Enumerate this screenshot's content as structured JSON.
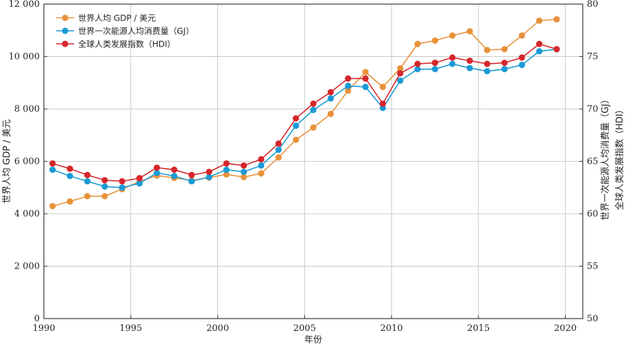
{
  "chart_data": {
    "type": "line",
    "title": "",
    "xlabel": "年份",
    "ylabel_left": "世界人均 GDP / 美元",
    "ylabel_right": [
      "世界一次能源人均消费量（GJ）",
      "全球人类发展指数（HDI）"
    ],
    "xlim": [
      1990,
      2021
    ],
    "xticks": [
      "1990",
      "1995",
      "2000",
      "2005",
      "2010",
      "2015",
      "2020"
    ],
    "ylim_left": [
      0,
      12000
    ],
    "yticks_left": [
      "0",
      "2 000",
      "4 000",
      "6 000",
      "8 000",
      "10 000",
      "12 000"
    ],
    "ylim_right": [
      50,
      80
    ],
    "yticks_right": [
      "50",
      "55",
      "60",
      "65",
      "70",
      "75",
      "80"
    ],
    "grid": true,
    "legend_position": "top-left",
    "x": [
      1990.5,
      1991.5,
      1992.5,
      1993.5,
      1994.5,
      1995.5,
      1996.5,
      1997.5,
      1998.5,
      1999.5,
      2000.5,
      2001.5,
      2002.5,
      2003.5,
      2004.5,
      2005.5,
      2006.5,
      2007.5,
      2008.5,
      2009.5,
      2010.5,
      2011.5,
      2012.5,
      2013.5,
      2014.5,
      2015.5,
      2016.5,
      2017.5,
      2018.5,
      2019.5
    ],
    "series": [
      {
        "name": "世界人均 GDP / 美元",
        "axis": "left",
        "color": "#e8923a",
        "values": [
          4290,
          4470,
          4670,
          4670,
          4940,
          5230,
          5460,
          5370,
          5270,
          5380,
          5500,
          5400,
          5540,
          6150,
          6820,
          7290,
          7810,
          8700,
          9410,
          8840,
          9550,
          10480,
          10610,
          10800,
          10960,
          10250,
          10280,
          10800,
          11370,
          11420
        ]
      },
      {
        "name": "世界一次能源人均消费量（GJ）",
        "axis": "right",
        "color": "#1a9ad6",
        "values": [
          64.2,
          63.6,
          63.1,
          62.6,
          62.5,
          62.9,
          63.9,
          63.6,
          63.1,
          63.5,
          64.2,
          64.0,
          64.6,
          66.1,
          68.4,
          69.9,
          71.0,
          72.2,
          72.1,
          70.1,
          72.7,
          73.8,
          73.8,
          74.3,
          73.9,
          73.6,
          73.8,
          74.2,
          75.5,
          75.7
        ]
      },
      {
        "name": "全球人类发展指数（HDI）",
        "axis": "right",
        "color": "#d6262b",
        "values": [
          64.8,
          64.3,
          63.7,
          63.2,
          63.1,
          63.4,
          64.4,
          64.2,
          63.7,
          64.0,
          64.8,
          64.6,
          65.2,
          66.7,
          69.1,
          70.5,
          71.6,
          72.9,
          72.9,
          70.5,
          73.4,
          74.3,
          74.4,
          74.9,
          74.6,
          74.3,
          74.4,
          74.9,
          76.2,
          75.7
        ]
      }
    ]
  },
  "colors": {
    "axis": "#333333",
    "grid": "#c8c8c8"
  }
}
